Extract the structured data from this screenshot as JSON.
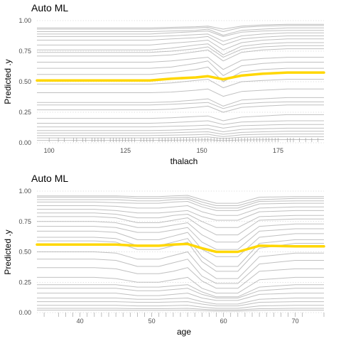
{
  "chart_data": [
    {
      "type": "line",
      "title": "Auto ML",
      "xlabel": "thalach",
      "ylabel": "Predicted .y",
      "xlim": [
        96,
        190
      ],
      "ylim": [
        0,
        1
      ],
      "x_ticks": [
        100,
        125,
        150,
        175
      ],
      "y_ticks": [
        0,
        0.25,
        0.5,
        0.75,
        1
      ],
      "y_tick_labels": [
        "0.00",
        "0.25",
        "0.50",
        "0.75",
        "1.00"
      ],
      "grid": "horizontal dotted",
      "x": [
        96,
        105,
        115,
        125,
        133,
        140,
        148,
        152,
        157,
        163,
        170,
        178,
        190
      ],
      "average_curve": {
        "color": "#FFD700",
        "values": [
          0.51,
          0.51,
          0.51,
          0.51,
          0.51,
          0.525,
          0.535,
          0.545,
          0.52,
          0.55,
          0.565,
          0.575,
          0.575
        ]
      },
      "individual_curve_color": "#8c8c8c",
      "individual_curves": [
        [
          0.94,
          0.94,
          0.94,
          0.94,
          0.94,
          0.945,
          0.95,
          0.955,
          0.93,
          0.955,
          0.965,
          0.97,
          0.97
        ],
        [
          0.93,
          0.93,
          0.93,
          0.93,
          0.93,
          0.935,
          0.94,
          0.945,
          0.91,
          0.945,
          0.955,
          0.96,
          0.96
        ],
        [
          0.91,
          0.91,
          0.91,
          0.91,
          0.91,
          0.915,
          0.92,
          0.93,
          0.88,
          0.92,
          0.93,
          0.94,
          0.94
        ],
        [
          0.89,
          0.89,
          0.89,
          0.89,
          0.89,
          0.9,
          0.91,
          0.915,
          0.87,
          0.905,
          0.915,
          0.92,
          0.92
        ],
        [
          0.87,
          0.87,
          0.87,
          0.87,
          0.87,
          0.875,
          0.885,
          0.89,
          0.83,
          0.875,
          0.89,
          0.9,
          0.9
        ],
        [
          0.84,
          0.84,
          0.84,
          0.84,
          0.84,
          0.85,
          0.86,
          0.87,
          0.8,
          0.85,
          0.865,
          0.875,
          0.875
        ],
        [
          0.8,
          0.8,
          0.8,
          0.8,
          0.8,
          0.815,
          0.83,
          0.84,
          0.76,
          0.82,
          0.84,
          0.85,
          0.85
        ],
        [
          0.76,
          0.76,
          0.76,
          0.76,
          0.76,
          0.775,
          0.8,
          0.81,
          0.72,
          0.79,
          0.81,
          0.82,
          0.82
        ],
        [
          0.74,
          0.74,
          0.74,
          0.74,
          0.74,
          0.75,
          0.77,
          0.785,
          0.7,
          0.765,
          0.785,
          0.795,
          0.795
        ],
        [
          0.71,
          0.71,
          0.71,
          0.71,
          0.71,
          0.72,
          0.745,
          0.76,
          0.67,
          0.74,
          0.76,
          0.77,
          0.77
        ],
        [
          0.66,
          0.66,
          0.66,
          0.66,
          0.66,
          0.67,
          0.69,
          0.7,
          0.6,
          0.675,
          0.69,
          0.7,
          0.7
        ],
        [
          0.61,
          0.61,
          0.61,
          0.61,
          0.61,
          0.62,
          0.65,
          0.67,
          0.55,
          0.63,
          0.65,
          0.66,
          0.66
        ],
        [
          0.56,
          0.56,
          0.56,
          0.56,
          0.56,
          0.575,
          0.6,
          0.62,
          0.5,
          0.58,
          0.6,
          0.61,
          0.61
        ],
        [
          0.48,
          0.48,
          0.48,
          0.48,
          0.48,
          0.49,
          0.51,
          0.52,
          0.45,
          0.5,
          0.51,
          0.52,
          0.52
        ],
        [
          0.41,
          0.41,
          0.41,
          0.41,
          0.41,
          0.415,
          0.43,
          0.44,
          0.38,
          0.42,
          0.43,
          0.44,
          0.44
        ],
        [
          0.33,
          0.33,
          0.33,
          0.33,
          0.33,
          0.335,
          0.35,
          0.36,
          0.3,
          0.35,
          0.36,
          0.37,
          0.37
        ],
        [
          0.31,
          0.31,
          0.31,
          0.31,
          0.31,
          0.315,
          0.325,
          0.33,
          0.28,
          0.32,
          0.33,
          0.335,
          0.335
        ],
        [
          0.27,
          0.27,
          0.27,
          0.27,
          0.27,
          0.275,
          0.29,
          0.3,
          0.25,
          0.29,
          0.3,
          0.31,
          0.31
        ],
        [
          0.2,
          0.2,
          0.2,
          0.2,
          0.2,
          0.205,
          0.215,
          0.22,
          0.18,
          0.21,
          0.22,
          0.23,
          0.23
        ],
        [
          0.16,
          0.16,
          0.16,
          0.16,
          0.16,
          0.165,
          0.175,
          0.18,
          0.15,
          0.17,
          0.175,
          0.18,
          0.18
        ],
        [
          0.13,
          0.13,
          0.13,
          0.13,
          0.13,
          0.135,
          0.14,
          0.145,
          0.12,
          0.14,
          0.145,
          0.15,
          0.15
        ],
        [
          0.1,
          0.1,
          0.1,
          0.1,
          0.1,
          0.103,
          0.11,
          0.115,
          0.09,
          0.11,
          0.115,
          0.12,
          0.12
        ],
        [
          0.08,
          0.08,
          0.08,
          0.08,
          0.08,
          0.082,
          0.088,
          0.09,
          0.07,
          0.085,
          0.09,
          0.095,
          0.095
        ],
        [
          0.06,
          0.06,
          0.06,
          0.06,
          0.06,
          0.062,
          0.066,
          0.07,
          0.05,
          0.065,
          0.07,
          0.072,
          0.072
        ],
        [
          0.04,
          0.04,
          0.04,
          0.04,
          0.04,
          0.041,
          0.045,
          0.048,
          0.035,
          0.045,
          0.048,
          0.05,
          0.05
        ],
        [
          0.02,
          0.02,
          0.02,
          0.02,
          0.02,
          0.021,
          0.023,
          0.025,
          0.018,
          0.023,
          0.025,
          0.026,
          0.026
        ]
      ],
      "rug": [
        100,
        103,
        105,
        108,
        109,
        111,
        112,
        114,
        115,
        116,
        117,
        118,
        120,
        121,
        122,
        123,
        124,
        125,
        126,
        127,
        128,
        130,
        131,
        132,
        133,
        134,
        136,
        137,
        138,
        139,
        140,
        141,
        142,
        143,
        144,
        145,
        146,
        147,
        148,
        149,
        150,
        151,
        152,
        153,
        154,
        155,
        156,
        157,
        158,
        159,
        160,
        161,
        162,
        163,
        164,
        165,
        166,
        167,
        168,
        169,
        170,
        171,
        172,
        173,
        174,
        175,
        178,
        179,
        180,
        182,
        184,
        186,
        188
      ]
    },
    {
      "type": "line",
      "title": "Auto ML",
      "xlabel": "age",
      "ylabel": "Predicted .y",
      "xlim": [
        34,
        74
      ],
      "ylim": [
        0,
        1
      ],
      "x_ticks": [
        40,
        50,
        60,
        70
      ],
      "y_ticks": [
        0,
        0.25,
        0.5,
        0.75,
        1
      ],
      "y_tick_labels": [
        "0.00",
        "0.25",
        "0.50",
        "0.75",
        "1.00"
      ],
      "grid": "horizontal dotted",
      "x": [
        34,
        38,
        42,
        45,
        48,
        51,
        53,
        55,
        57,
        59,
        62,
        65,
        70,
        74
      ],
      "average_curve": {
        "color": "#FFD700",
        "values": [
          0.56,
          0.56,
          0.56,
          0.56,
          0.55,
          0.55,
          0.56,
          0.565,
          0.53,
          0.5,
          0.5,
          0.55,
          0.545,
          0.545
        ]
      },
      "individual_curve_color": "#8c8c8c",
      "individual_curves": [
        [
          0.96,
          0.96,
          0.96,
          0.96,
          0.955,
          0.955,
          0.96,
          0.965,
          0.93,
          0.9,
          0.9,
          0.95,
          0.955,
          0.955
        ],
        [
          0.95,
          0.95,
          0.95,
          0.95,
          0.94,
          0.94,
          0.945,
          0.95,
          0.91,
          0.88,
          0.88,
          0.93,
          0.94,
          0.94
        ],
        [
          0.93,
          0.93,
          0.93,
          0.93,
          0.92,
          0.92,
          0.93,
          0.935,
          0.89,
          0.86,
          0.86,
          0.915,
          0.92,
          0.92
        ],
        [
          0.91,
          0.91,
          0.91,
          0.905,
          0.9,
          0.9,
          0.91,
          0.915,
          0.87,
          0.84,
          0.84,
          0.895,
          0.9,
          0.9
        ],
        [
          0.88,
          0.88,
          0.88,
          0.875,
          0.86,
          0.86,
          0.87,
          0.88,
          0.83,
          0.8,
          0.8,
          0.86,
          0.87,
          0.87
        ],
        [
          0.85,
          0.85,
          0.85,
          0.84,
          0.82,
          0.82,
          0.83,
          0.84,
          0.79,
          0.76,
          0.76,
          0.83,
          0.84,
          0.84
        ],
        [
          0.82,
          0.82,
          0.82,
          0.81,
          0.78,
          0.78,
          0.8,
          0.81,
          0.75,
          0.7,
          0.7,
          0.79,
          0.8,
          0.8
        ],
        [
          0.79,
          0.79,
          0.79,
          0.78,
          0.74,
          0.74,
          0.76,
          0.78,
          0.7,
          0.64,
          0.64,
          0.76,
          0.77,
          0.77
        ],
        [
          0.75,
          0.75,
          0.75,
          0.74,
          0.7,
          0.7,
          0.72,
          0.74,
          0.64,
          0.58,
          0.58,
          0.71,
          0.73,
          0.73
        ],
        [
          0.71,
          0.71,
          0.71,
          0.7,
          0.66,
          0.66,
          0.68,
          0.7,
          0.58,
          0.52,
          0.52,
          0.67,
          0.69,
          0.69
        ],
        [
          0.67,
          0.67,
          0.67,
          0.66,
          0.6,
          0.6,
          0.63,
          0.66,
          0.52,
          0.46,
          0.46,
          0.62,
          0.65,
          0.65
        ],
        [
          0.62,
          0.62,
          0.62,
          0.61,
          0.55,
          0.55,
          0.58,
          0.61,
          0.46,
          0.38,
          0.38,
          0.57,
          0.6,
          0.6
        ],
        [
          0.59,
          0.59,
          0.59,
          0.58,
          0.52,
          0.52,
          0.55,
          0.58,
          0.42,
          0.34,
          0.34,
          0.53,
          0.57,
          0.57
        ],
        [
          0.5,
          0.5,
          0.5,
          0.49,
          0.44,
          0.44,
          0.47,
          0.5,
          0.36,
          0.28,
          0.28,
          0.46,
          0.49,
          0.49
        ],
        [
          0.44,
          0.44,
          0.44,
          0.43,
          0.38,
          0.38,
          0.41,
          0.44,
          0.3,
          0.24,
          0.24,
          0.4,
          0.43,
          0.43
        ],
        [
          0.37,
          0.37,
          0.37,
          0.36,
          0.32,
          0.32,
          0.34,
          0.37,
          0.26,
          0.2,
          0.2,
          0.34,
          0.36,
          0.36
        ],
        [
          0.29,
          0.29,
          0.29,
          0.28,
          0.25,
          0.25,
          0.27,
          0.29,
          0.2,
          0.16,
          0.16,
          0.27,
          0.29,
          0.29
        ],
        [
          0.23,
          0.23,
          0.23,
          0.23,
          0.21,
          0.21,
          0.22,
          0.23,
          0.17,
          0.13,
          0.13,
          0.21,
          0.23,
          0.23
        ],
        [
          0.2,
          0.2,
          0.2,
          0.2,
          0.18,
          0.18,
          0.19,
          0.2,
          0.15,
          0.12,
          0.12,
          0.18,
          0.2,
          0.2
        ],
        [
          0.16,
          0.16,
          0.16,
          0.16,
          0.14,
          0.14,
          0.15,
          0.16,
          0.12,
          0.1,
          0.1,
          0.15,
          0.16,
          0.16
        ],
        [
          0.12,
          0.12,
          0.12,
          0.12,
          0.11,
          0.11,
          0.115,
          0.12,
          0.09,
          0.07,
          0.07,
          0.11,
          0.12,
          0.12
        ],
        [
          0.09,
          0.09,
          0.09,
          0.09,
          0.085,
          0.085,
          0.088,
          0.09,
          0.07,
          0.055,
          0.055,
          0.085,
          0.09,
          0.09
        ],
        [
          0.06,
          0.06,
          0.06,
          0.06,
          0.055,
          0.055,
          0.058,
          0.06,
          0.045,
          0.035,
          0.035,
          0.055,
          0.06,
          0.06
        ],
        [
          0.035,
          0.035,
          0.035,
          0.035,
          0.032,
          0.032,
          0.034,
          0.035,
          0.028,
          0.022,
          0.022,
          0.032,
          0.035,
          0.035
        ],
        [
          0.02,
          0.02,
          0.02,
          0.02,
          0.018,
          0.018,
          0.019,
          0.02,
          0.016,
          0.012,
          0.012,
          0.018,
          0.02,
          0.02
        ]
      ],
      "rug": [
        35,
        37,
        38,
        39,
        40,
        41,
        42,
        43,
        44,
        45,
        46,
        47,
        48,
        49,
        50,
        51,
        52,
        53,
        54,
        55,
        56,
        57,
        58,
        59,
        60,
        61,
        62,
        63,
        64,
        65,
        66,
        67,
        68,
        69,
        70,
        71,
        74
      ]
    }
  ]
}
